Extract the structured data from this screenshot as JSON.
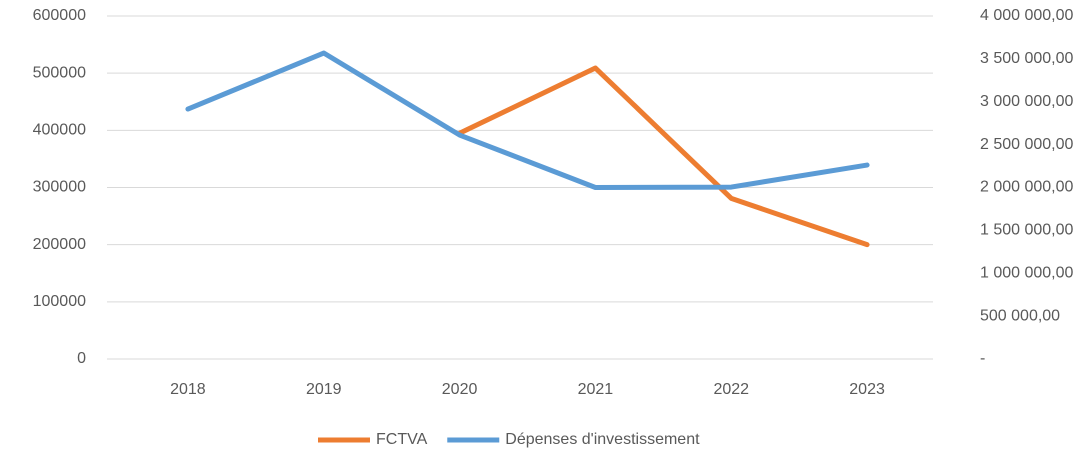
{
  "chart_data": {
    "type": "line",
    "categories": [
      "2018",
      "2019",
      "2020",
      "2021",
      "2022",
      "2023"
    ],
    "series": [
      {
        "name": "FCTVA",
        "color": "#ed7d31",
        "axis": "y",
        "values": [
          null,
          null,
          395000,
          509000,
          281000,
          200000
        ]
      },
      {
        "name": "Dépenses d'investissement",
        "color": "#5b9bd5",
        "axis": "y2",
        "values": [
          2915000,
          3568000,
          2612000,
          2000000,
          2005000,
          2262000
        ]
      }
    ],
    "ylim": [
      0,
      600000
    ],
    "yticks": [
      0,
      100000,
      200000,
      300000,
      400000,
      500000,
      600000
    ],
    "y2lim": [
      0,
      4000000
    ],
    "y2ticks": [
      {
        "value": 0,
        "label": "-"
      },
      {
        "value": 500000,
        "label": "500 000,00"
      },
      {
        "value": 1000000,
        "label": "1 000 000,00"
      },
      {
        "value": 1500000,
        "label": "1 500 000,00"
      },
      {
        "value": 2000000,
        "label": "2 000 000,00"
      },
      {
        "value": 2500000,
        "label": "2 500 000,00"
      },
      {
        "value": 3000000,
        "label": "3 000 000,00"
      },
      {
        "value": 3500000,
        "label": "3 500 000,00"
      },
      {
        "value": 4000000,
        "label": "4 000 000,00"
      }
    ],
    "grid": true,
    "legend": "bottom"
  }
}
